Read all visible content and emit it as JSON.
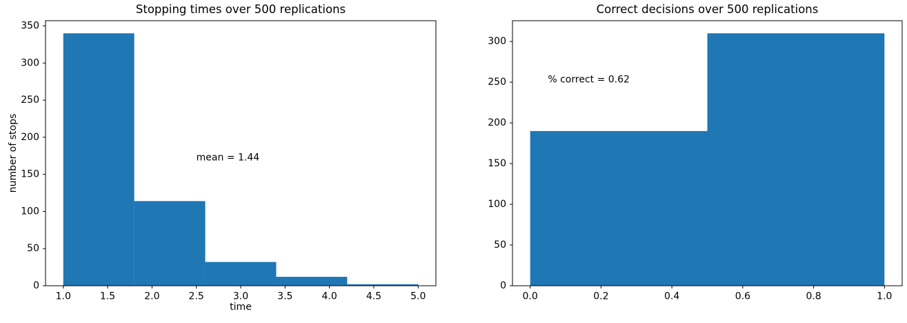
{
  "figure": {
    "background_color": "#ffffff",
    "text_color": "#000000",
    "spine_color": "#000000"
  },
  "chart_data": [
    {
      "type": "bar",
      "subtype": "histogram",
      "title": "Stopping times over 500 replications",
      "xlabel": "time",
      "ylabel": "number of stops",
      "bin_edges": [
        1.0,
        1.8,
        2.6,
        3.4,
        4.2,
        5.0
      ],
      "counts": [
        340,
        114,
        32,
        12,
        2
      ],
      "total_replications": 500,
      "xlim": [
        0.8,
        5.2
      ],
      "ylim": [
        0,
        357
      ],
      "xticks": [
        1.0,
        1.5,
        2.0,
        2.5,
        3.0,
        3.5,
        4.0,
        4.5,
        5.0
      ],
      "xtick_labels": [
        "1.0",
        "1.5",
        "2.0",
        "2.5",
        "3.0",
        "3.5",
        "4.0",
        "4.5",
        "5.0"
      ],
      "yticks": [
        0,
        50,
        100,
        150,
        200,
        250,
        300,
        350
      ],
      "ytick_labels": [
        "0",
        "50",
        "100",
        "150",
        "200",
        "250",
        "300",
        "350"
      ],
      "annotation": {
        "text": "mean = 1.44",
        "x": 2.5,
        "y": 172
      },
      "bar_color": "#1f77b4",
      "grid": false,
      "legend": null
    },
    {
      "type": "bar",
      "subtype": "histogram",
      "title": "Correct decisions over 500 replications",
      "xlabel": "",
      "ylabel": "",
      "bin_edges": [
        0.0,
        0.5,
        1.0
      ],
      "counts": [
        190,
        310
      ],
      "total_replications": 500,
      "xlim": [
        -0.05,
        1.05
      ],
      "ylim": [
        0,
        325.5
      ],
      "xticks": [
        0.0,
        0.2,
        0.4,
        0.6,
        0.8,
        1.0
      ],
      "xtick_labels": [
        "0.0",
        "0.2",
        "0.4",
        "0.6",
        "0.8",
        "1.0"
      ],
      "yticks": [
        0,
        50,
        100,
        150,
        200,
        250,
        300
      ],
      "ytick_labels": [
        "0",
        "50",
        "100",
        "150",
        "200",
        "250",
        "300"
      ],
      "annotation": {
        "text": "% correct = 0.62",
        "x": 0.05,
        "y": 253
      },
      "bar_color": "#1f77b4",
      "grid": false,
      "legend": null
    }
  ]
}
